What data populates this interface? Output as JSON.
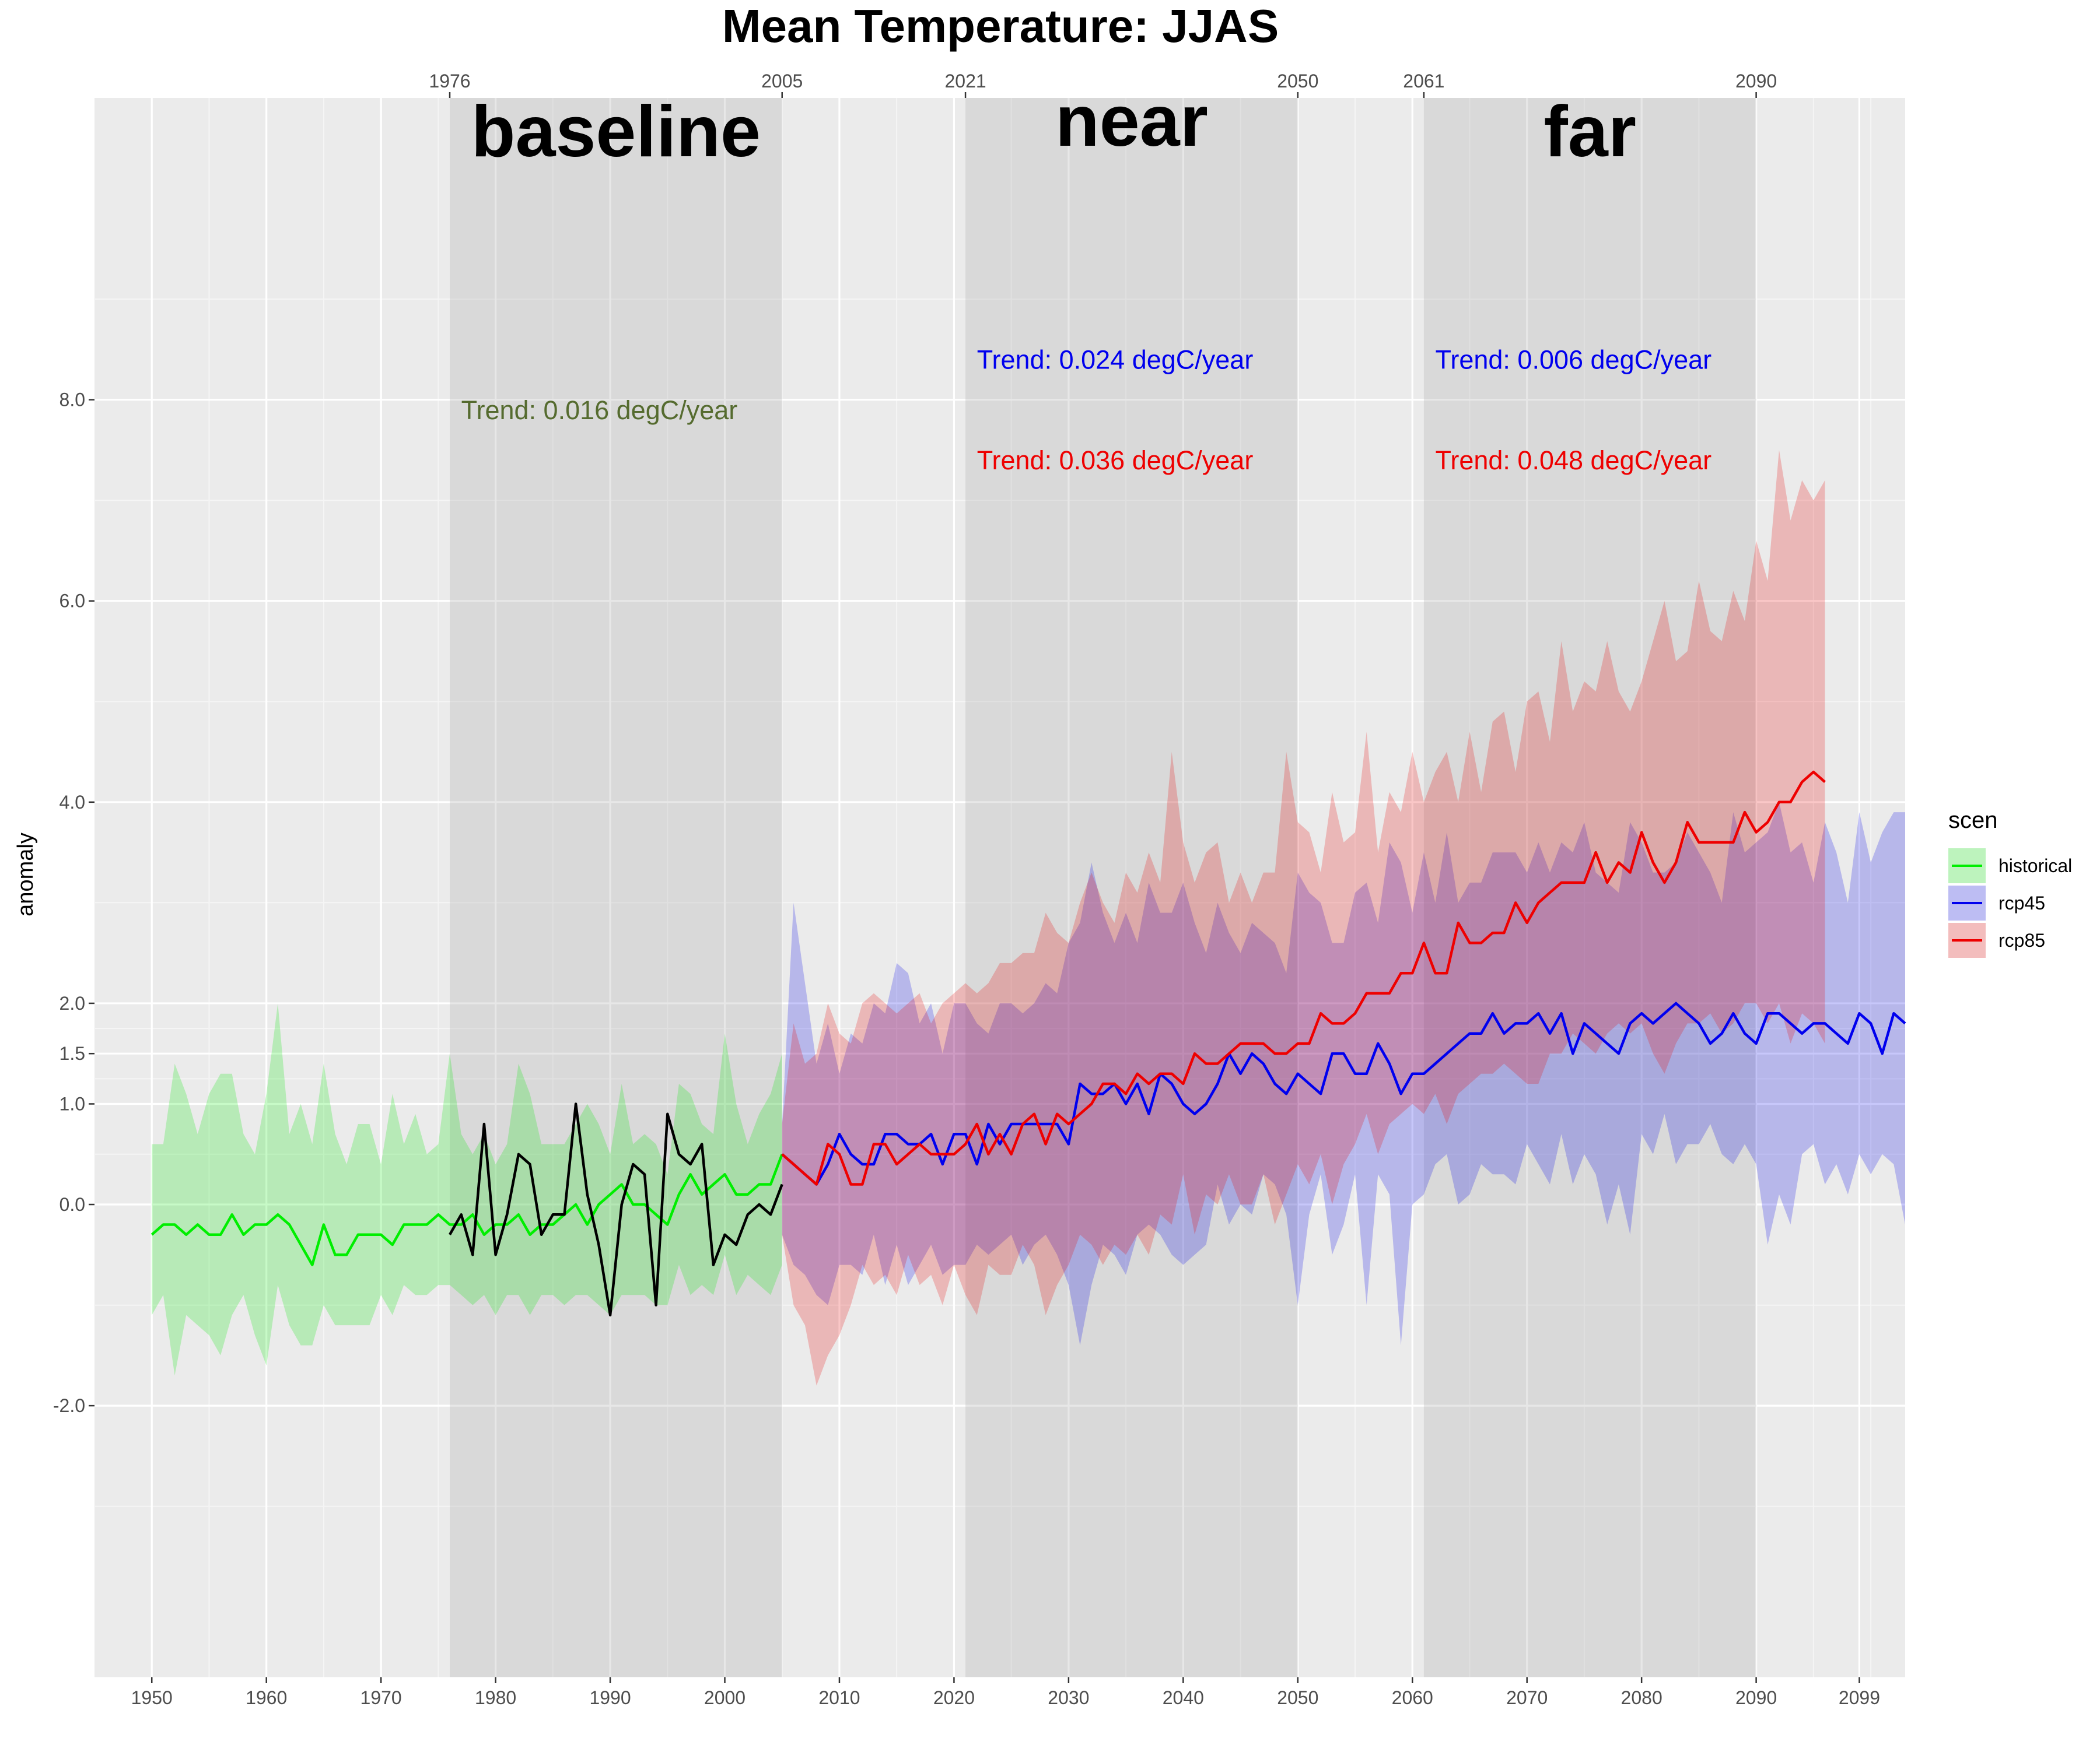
{
  "chart_data": {
    "type": "line",
    "title": "Mean Temperature: JJAS",
    "ylabel": "anomaly",
    "xlabel": "",
    "xlim": [
      1945,
      2103
    ],
    "ylim": [
      -4.7,
      11.0
    ],
    "x_ticks": [
      1950,
      1960,
      1970,
      1980,
      1990,
      2000,
      2010,
      2020,
      2030,
      2040,
      2050,
      2060,
      2070,
      2080,
      2090,
      2099
    ],
    "y_ticks": [
      {
        "value": 8.0,
        "label": "8.0"
      },
      {
        "value": 6.0,
        "label": "6.0"
      },
      {
        "value": 4.0,
        "label": "4.0"
      },
      {
        "value": 2.0,
        "label": "2.0"
      },
      {
        "value": 1.5,
        "label": "1.5"
      },
      {
        "value": 1.0,
        "label": "1.0"
      },
      {
        "value": 0.0,
        "label": "0.0"
      },
      {
        "value": -2.0,
        "label": "-2.0"
      }
    ],
    "y_minor_lines": [
      -3.0,
      -1.0,
      0.5,
      1.25,
      1.75,
      3.0,
      5.0,
      7.0,
      9.0
    ],
    "periods": [
      {
        "label": "baseline",
        "start": 1976,
        "end": 2005
      },
      {
        "label": "near",
        "start": 2021,
        "end": 2050
      },
      {
        "label": "far",
        "start": 2061,
        "end": 2090
      }
    ],
    "top_ticks": [
      1976,
      2005,
      2021,
      2050,
      2061,
      2090
    ],
    "trends": [
      {
        "text": "Trend: 0.016 degC/year",
        "color": "#556b2f",
        "x": 1977,
        "y": 7.9
      },
      {
        "text": "Trend: 0.024 degC/year",
        "color": "#0000ee",
        "x": 2022,
        "y": 8.4
      },
      {
        "text": "Trend: 0.036 degC/year",
        "color": "#ee0000",
        "x": 2022,
        "y": 7.4
      },
      {
        "text": "Trend: 0.006 degC/year",
        "color": "#0000ee",
        "x": 2062,
        "y": 8.4
      },
      {
        "text": "Trend: 0.048 degC/year",
        "color": "#ee0000",
        "x": 2062,
        "y": 7.4
      }
    ],
    "legend": {
      "title": "scen",
      "position": "right",
      "items": [
        {
          "label": "historical",
          "line_color": "#00ee00",
          "fill_color": "#bdf3bd"
        },
        {
          "label": "rcp45",
          "line_color": "#0000ee",
          "fill_color": "#bdbdf3"
        },
        {
          "label": "rcp85",
          "line_color": "#ee0000",
          "fill_color": "#f3bdbd"
        }
      ]
    },
    "series": [
      {
        "name": "historical",
        "color": "#00ee00",
        "fill": "rgba(0,230,0,0.22)",
        "x_start": 1950,
        "mean": [
          -0.3,
          -0.2,
          -0.2,
          -0.3,
          -0.2,
          -0.3,
          -0.3,
          -0.1,
          -0.3,
          -0.2,
          -0.2,
          -0.1,
          -0.2,
          -0.4,
          -0.6,
          -0.2,
          -0.5,
          -0.5,
          -0.3,
          -0.3,
          -0.3,
          -0.4,
          -0.2,
          -0.2,
          -0.2,
          -0.1,
          -0.2,
          -0.2,
          -0.1,
          -0.3,
          -0.2,
          -0.2,
          -0.1,
          -0.3,
          -0.2,
          -0.2,
          -0.1,
          0.0,
          -0.2,
          0.0,
          0.1,
          0.2,
          0.0,
          0.0,
          -0.1,
          -0.2,
          0.1,
          0.3,
          0.1,
          0.2,
          0.3,
          0.1,
          0.1,
          0.2,
          0.2,
          0.5
        ],
        "upper": [
          0.6,
          0.6,
          1.4,
          1.1,
          0.7,
          1.1,
          1.3,
          1.3,
          0.7,
          0.5,
          1.1,
          2.0,
          0.7,
          1.0,
          0.6,
          1.4,
          0.7,
          0.4,
          0.8,
          0.8,
          0.4,
          1.1,
          0.6,
          0.9,
          0.5,
          0.6,
          1.5,
          0.7,
          0.5,
          0.7,
          0.4,
          0.6,
          1.4,
          1.1,
          0.6,
          0.6,
          0.6,
          0.8,
          1.0,
          0.8,
          0.5,
          1.2,
          0.6,
          0.7,
          0.6,
          0.3,
          1.2,
          1.1,
          0.8,
          0.7,
          1.7,
          1.0,
          0.6,
          0.9,
          1.1,
          1.5
        ],
        "lower": [
          -1.1,
          -0.9,
          -1.7,
          -1.1,
          -1.2,
          -1.3,
          -1.5,
          -1.1,
          -0.9,
          -1.3,
          -1.6,
          -0.8,
          -1.2,
          -1.4,
          -1.4,
          -1.0,
          -1.2,
          -1.2,
          -1.2,
          -1.2,
          -0.9,
          -1.1,
          -0.8,
          -0.9,
          -0.9,
          -0.8,
          -0.8,
          -0.9,
          -1.0,
          -0.9,
          -1.1,
          -0.9,
          -0.9,
          -1.1,
          -0.9,
          -0.9,
          -1.0,
          -0.9,
          -0.9,
          -1.0,
          -1.1,
          -0.9,
          -0.9,
          -0.9,
          -1.0,
          -1.0,
          -0.6,
          -0.9,
          -0.8,
          -0.9,
          -0.5,
          -0.9,
          -0.7,
          -0.8,
          -0.9,
          -0.6
        ]
      },
      {
        "name": "observed",
        "color": "#000000",
        "x_start": 1976,
        "mean": [
          -0.3,
          -0.1,
          -0.5,
          0.8,
          -0.5,
          -0.1,
          0.5,
          0.4,
          -0.3,
          -0.1,
          -0.1,
          1.0,
          0.1,
          -0.4,
          -1.1,
          0.0,
          0.4,
          0.3,
          -1.0,
          0.9,
          0.5,
          0.4,
          0.6,
          -0.6,
          -0.3,
          -0.4,
          -0.1,
          0.0,
          -0.1,
          0.2
        ]
      },
      {
        "name": "rcp45",
        "color": "#0000ee",
        "fill": "rgba(0,0,230,0.22)",
        "x_start": 2005,
        "mean": [
          0.5,
          0.4,
          0.3,
          0.2,
          0.4,
          0.7,
          0.5,
          0.4,
          0.4,
          0.7,
          0.7,
          0.6,
          0.6,
          0.7,
          0.4,
          0.7,
          0.7,
          0.4,
          0.8,
          0.6,
          0.8,
          0.8,
          0.8,
          0.8,
          0.8,
          0.6,
          1.2,
          1.1,
          1.1,
          1.2,
          1.0,
          1.2,
          0.9,
          1.3,
          1.2,
          1.0,
          0.9,
          1.0,
          1.2,
          1.5,
          1.3,
          1.5,
          1.4,
          1.2,
          1.1,
          1.3,
          1.2,
          1.1,
          1.5,
          1.5,
          1.3,
          1.3,
          1.6,
          1.4,
          1.1,
          1.3,
          1.3,
          1.4,
          1.5,
          1.6,
          1.7,
          1.7,
          1.9,
          1.7,
          1.8,
          1.8,
          1.9,
          1.7,
          1.9,
          1.5,
          1.8,
          1.7,
          1.6,
          1.5,
          1.8,
          1.9,
          1.8,
          1.9,
          2.0,
          1.9,
          1.8,
          1.6,
          1.7,
          1.9,
          1.7,
          1.6,
          1.9,
          1.9,
          1.8,
          1.7,
          1.8,
          1.8,
          1.7,
          1.6,
          1.9,
          1.8,
          1.5,
          1.9,
          1.8
        ],
        "upper": [
          0.8,
          3.0,
          2.2,
          1.4,
          1.8,
          1.3,
          1.7,
          1.6,
          2.0,
          1.9,
          2.4,
          2.3,
          1.8,
          2.0,
          1.5,
          2.0,
          2.0,
          1.8,
          1.7,
          2.0,
          2.0,
          1.9,
          2.0,
          2.2,
          2.1,
          2.6,
          2.8,
          3.4,
          2.9,
          2.6,
          2.9,
          2.6,
          3.2,
          2.9,
          2.9,
          3.2,
          2.8,
          2.5,
          3.0,
          2.7,
          2.5,
          2.8,
          2.7,
          2.6,
          2.3,
          3.3,
          3.1,
          3.0,
          2.6,
          2.6,
          3.1,
          3.2,
          2.8,
          3.6,
          3.4,
          2.9,
          3.5,
          3.0,
          3.7,
          3.0,
          3.2,
          3.2,
          3.5,
          3.5,
          3.5,
          3.3,
          3.6,
          3.3,
          3.6,
          3.5,
          3.8,
          3.3,
          3.2,
          3.1,
          3.8,
          3.6,
          3.3,
          3.3,
          3.4,
          3.7,
          3.5,
          3.3,
          3.0,
          3.9,
          3.5,
          3.6,
          3.7,
          4.0,
          3.5,
          3.6,
          3.2,
          3.8,
          3.5,
          3.0,
          3.9,
          3.4,
          3.7,
          3.9,
          3.9
        ],
        "lower": [
          -0.3,
          -0.6,
          -0.7,
          -0.9,
          -1.0,
          -0.6,
          -0.6,
          -0.7,
          -0.3,
          -0.8,
          -0.4,
          -0.8,
          -0.6,
          -0.4,
          -0.7,
          -0.6,
          -0.6,
          -0.4,
          -0.5,
          -0.4,
          -0.3,
          -0.6,
          -0.4,
          -0.3,
          -0.5,
          -0.8,
          -1.4,
          -0.8,
          -0.4,
          -0.5,
          -0.7,
          -0.3,
          -0.2,
          -0.3,
          -0.5,
          -0.6,
          -0.5,
          -0.4,
          0.2,
          -0.2,
          0.0,
          -0.1,
          0.3,
          0.2,
          -0.1,
          -1.0,
          -0.1,
          0.3,
          -0.5,
          -0.2,
          0.3,
          -1.0,
          0.3,
          0.1,
          -1.4,
          0.0,
          0.1,
          0.4,
          0.5,
          0.0,
          0.1,
          0.4,
          0.3,
          0.3,
          0.2,
          0.6,
          0.4,
          0.2,
          0.7,
          0.2,
          0.5,
          0.3,
          -0.2,
          0.2,
          -0.3,
          0.7,
          0.5,
          0.9,
          0.4,
          0.6,
          0.6,
          0.8,
          0.5,
          0.4,
          0.6,
          0.4,
          -0.4,
          0.1,
          -0.2,
          0.5,
          0.6,
          0.2,
          0.4,
          0.1,
          0.5,
          0.3,
          0.5,
          0.4,
          -0.2
        ]
      },
      {
        "name": "rcp85",
        "color": "#ee0000",
        "fill": "rgba(230,0,0,0.22)",
        "x_start": 2005,
        "mean": [
          0.5,
          0.4,
          0.3,
          0.2,
          0.6,
          0.5,
          0.2,
          0.2,
          0.6,
          0.6,
          0.4,
          0.5,
          0.6,
          0.5,
          0.5,
          0.5,
          0.6,
          0.8,
          0.5,
          0.7,
          0.5,
          0.8,
          0.9,
          0.6,
          0.9,
          0.8,
          0.9,
          1.0,
          1.2,
          1.2,
          1.1,
          1.3,
          1.2,
          1.3,
          1.3,
          1.2,
          1.5,
          1.4,
          1.4,
          1.5,
          1.6,
          1.6,
          1.6,
          1.5,
          1.5,
          1.6,
          1.6,
          1.9,
          1.8,
          1.8,
          1.9,
          2.1,
          2.1,
          2.1,
          2.3,
          2.3,
          2.6,
          2.3,
          2.3,
          2.8,
          2.6,
          2.6,
          2.7,
          2.7,
          3.0,
          2.8,
          3.0,
          3.1,
          3.2,
          3.2,
          3.2,
          3.5,
          3.2,
          3.4,
          3.3,
          3.7,
          3.4,
          3.2,
          3.4,
          3.8,
          3.6,
          3.6,
          3.6,
          3.6,
          3.9,
          3.7,
          3.8,
          4.0,
          4.0,
          4.2,
          4.3,
          4.2
        ],
        "upper": [
          0.8,
          1.8,
          1.4,
          1.5,
          2.0,
          1.7,
          1.6,
          2.0,
          2.1,
          2.0,
          1.9,
          2.0,
          2.1,
          1.8,
          2.0,
          2.1,
          2.2,
          2.1,
          2.2,
          2.4,
          2.4,
          2.5,
          2.5,
          2.9,
          2.7,
          2.6,
          3.0,
          3.3,
          3.0,
          2.8,
          3.3,
          3.1,
          3.5,
          3.2,
          4.5,
          3.6,
          3.2,
          3.5,
          3.6,
          3.0,
          3.3,
          3.0,
          3.3,
          3.3,
          4.5,
          3.8,
          3.7,
          3.3,
          4.1,
          3.6,
          3.7,
          4.7,
          3.5,
          4.1,
          3.9,
          4.5,
          4.0,
          4.3,
          4.5,
          4.0,
          4.7,
          4.1,
          4.8,
          4.9,
          4.3,
          5.0,
          5.1,
          4.6,
          5.6,
          4.9,
          5.2,
          5.1,
          5.6,
          5.1,
          4.9,
          5.2,
          5.6,
          6.0,
          5.4,
          5.5,
          6.2,
          5.7,
          5.6,
          6.1,
          5.8,
          6.6,
          6.2,
          7.5,
          6.8,
          7.2,
          7.0,
          7.2
        ],
        "lower": [
          -0.3,
          -1.0,
          -1.2,
          -1.8,
          -1.5,
          -1.3,
          -1.0,
          -0.6,
          -0.8,
          -0.7,
          -0.9,
          -0.5,
          -0.8,
          -0.7,
          -1.0,
          -0.6,
          -0.9,
          -1.1,
          -0.6,
          -0.7,
          -0.7,
          -0.4,
          -0.6,
          -1.1,
          -0.8,
          -0.6,
          -0.3,
          -0.4,
          -0.6,
          -0.4,
          -0.5,
          -0.3,
          -0.5,
          -0.1,
          -0.2,
          0.3,
          -0.3,
          0.1,
          0.0,
          0.3,
          0.0,
          0.0,
          0.3,
          -0.2,
          0.1,
          0.4,
          0.2,
          0.5,
          0.0,
          0.4,
          0.6,
          0.9,
          0.5,
          0.8,
          0.9,
          1.0,
          0.9,
          1.1,
          0.8,
          1.1,
          1.2,
          1.3,
          1.3,
          1.4,
          1.3,
          1.2,
          1.2,
          1.5,
          1.5,
          1.7,
          1.6,
          1.5,
          1.7,
          1.8,
          1.7,
          1.8,
          1.5,
          1.3,
          1.6,
          1.8,
          1.8,
          1.9,
          1.7,
          1.8,
          2.0,
          2.0,
          1.8,
          2.0,
          1.6,
          1.9,
          1.8,
          1.6
        ]
      }
    ]
  }
}
